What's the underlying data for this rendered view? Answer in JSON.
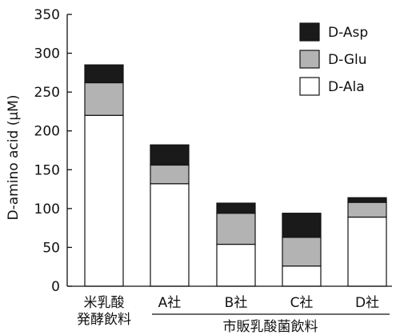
{
  "chart_data": {
    "type": "bar",
    "stacked": true,
    "ylabel": "D-amino acid (μM)",
    "ylim": [
      0,
      350
    ],
    "yticks": [
      0,
      50,
      100,
      150,
      200,
      250,
      300,
      350
    ],
    "grid": false,
    "legend_position": "top-right",
    "categories": [
      {
        "lines": [
          "米乳酸",
          "発酵飲料"
        ]
      },
      {
        "lines": [
          "A社"
        ]
      },
      {
        "lines": [
          "B社"
        ]
      },
      {
        "lines": [
          "C社"
        ]
      },
      {
        "lines": [
          "D社"
        ]
      }
    ],
    "group_label": "市販乳酸菌飲料",
    "series": [
      {
        "name": "D-Ala",
        "color": "#ffffff",
        "values": [
          220,
          132,
          54,
          26,
          89
        ]
      },
      {
        "name": "D-Glu",
        "color": "#b3b3b3",
        "values": [
          42,
          24,
          40,
          37,
          19
        ]
      },
      {
        "name": "D-Asp",
        "color": "#1a1a1a",
        "values": [
          23,
          26,
          13,
          31,
          6
        ]
      }
    ],
    "legend_order": [
      "D-Asp",
      "D-Glu",
      "D-Ala"
    ]
  }
}
